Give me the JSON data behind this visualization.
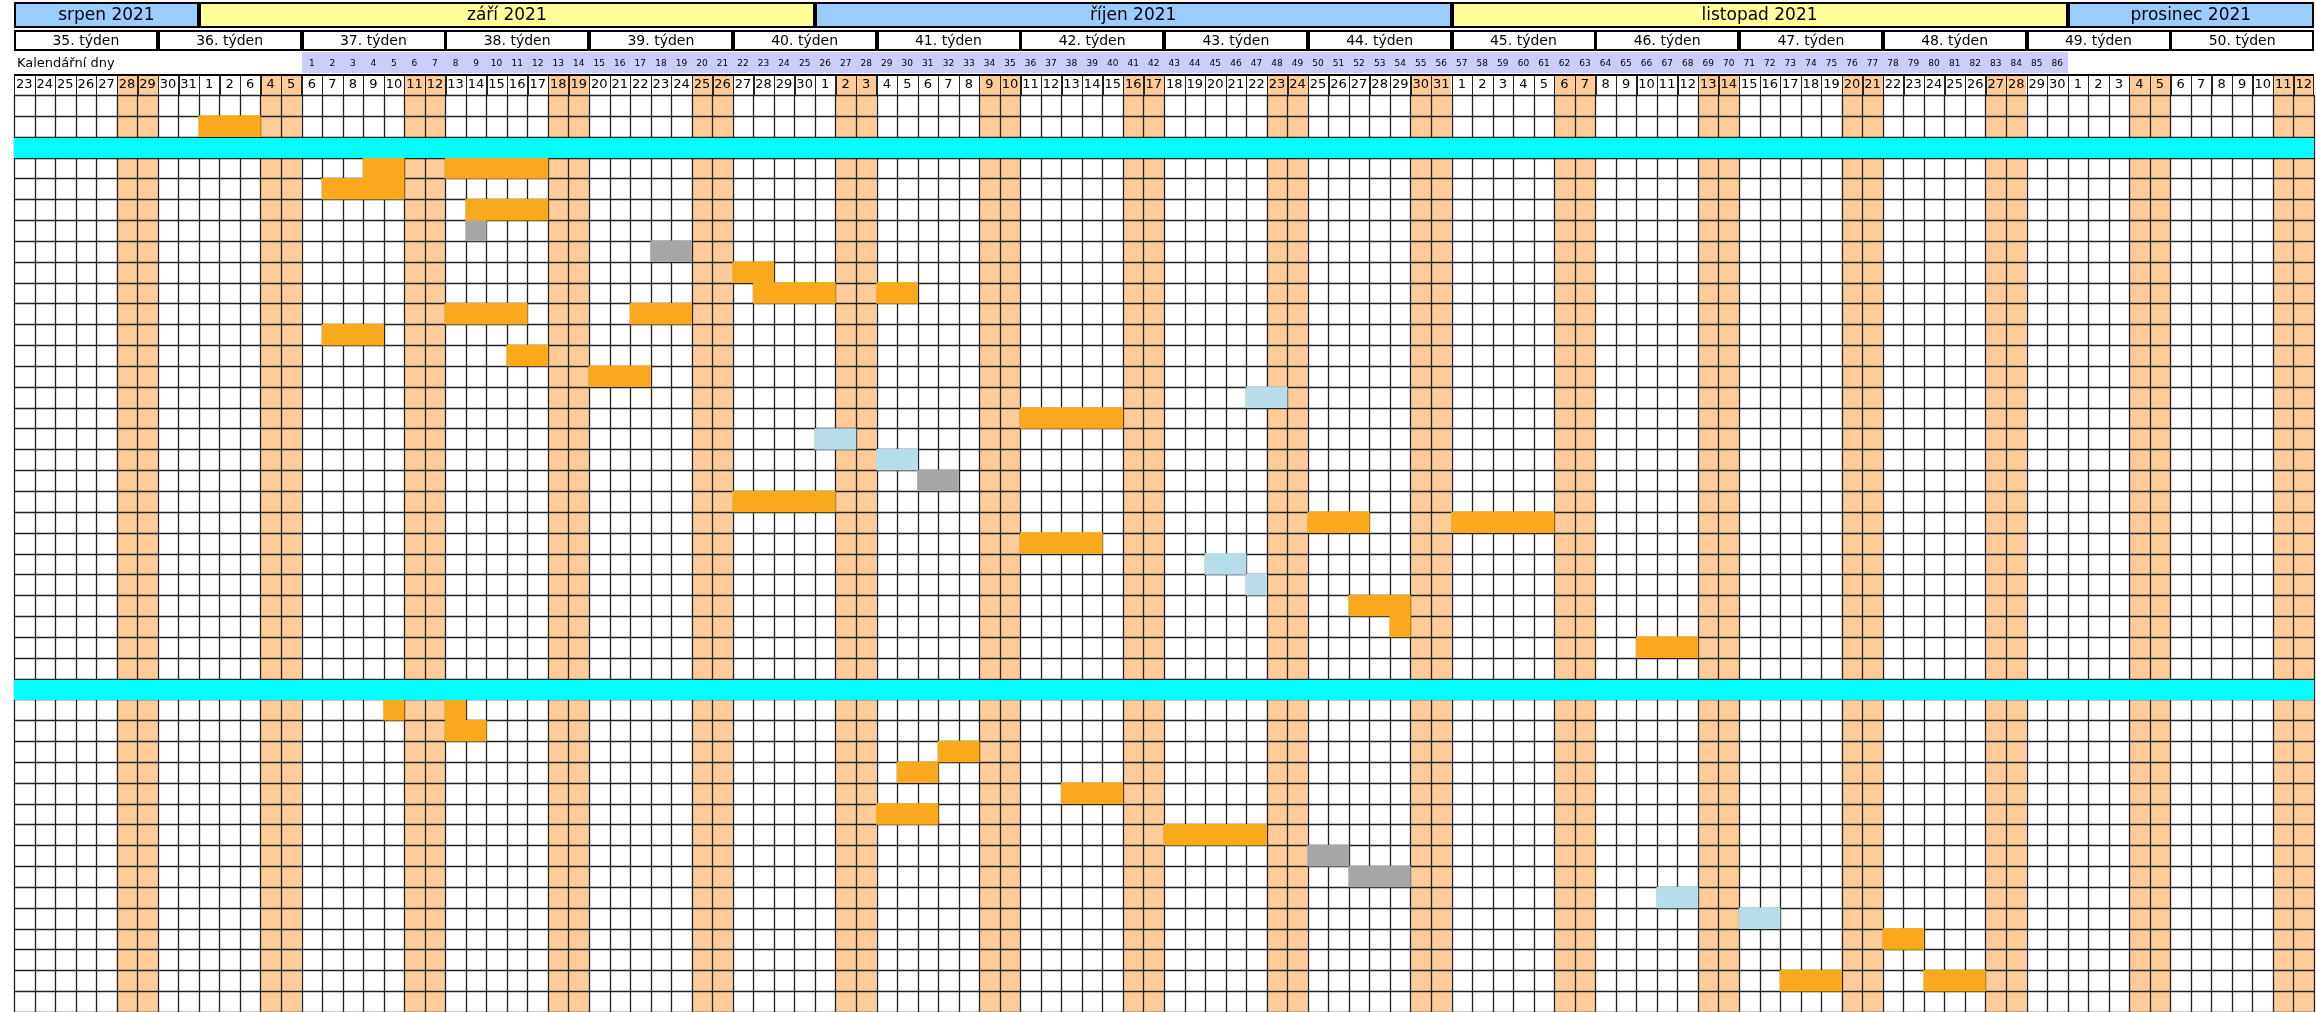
{
  "chart_data": {
    "type": "bar",
    "orientation": "horizontal",
    "grid": true,
    "tick_labels": "x",
    "categories": [
      null,
      null,
      null,
      null,
      null,
      null,
      null,
      null,
      null,
      null,
      null,
      null,
      null,
      null,
      null,
      null,
      null,
      null,
      null,
      null,
      null,
      null,
      null,
      null,
      null,
      null,
      null,
      null,
      null,
      null,
      null,
      null,
      null,
      null,
      null,
      null,
      null,
      null,
      null,
      null,
      null,
      null,
      null,
      null
    ],
    "xlim": [
      "2021-08-23",
      "2021-12-13"
    ],
    "xticks": [
      {
        "value": "2021-08-23T12:00",
        "label": "23"
      },
      {
        "value": "2021-08-24T12:00",
        "label": "24"
      },
      {
        "value": "2021-08-25T12:00",
        "label": "25"
      },
      {
        "value": "2021-08-26T12:00",
        "label": "26"
      },
      {
        "value": "2021-08-27T12:00",
        "label": "27"
      },
      {
        "value": "2021-08-28T12:00",
        "label": "28"
      },
      {
        "value": "2021-08-29T12:00",
        "label": "29"
      },
      {
        "value": "2021-08-30T12:00",
        "label": "30"
      },
      {
        "value": "2021-08-31T12:00",
        "label": "31"
      },
      {
        "value": "2021-09-01T12:00",
        "label": "1"
      },
      {
        "value": "2021-09-02T12:00",
        "label": "2"
      },
      {
        "value": "2021-09-03T12:00",
        "label": "6"
      },
      {
        "value": "2021-09-04T12:00",
        "label": "4"
      },
      {
        "value": "2021-09-05T12:00",
        "label": "5"
      },
      {
        "value": "2021-09-06T12:00",
        "label": "6"
      },
      {
        "value": "2021-09-07T12:00",
        "label": "7"
      },
      {
        "value": "2021-09-08T12:00",
        "label": "8"
      },
      {
        "value": "2021-09-09T12:00",
        "label": "9"
      },
      {
        "value": "2021-09-10T12:00",
        "label": "10"
      },
      {
        "value": "2021-09-11T12:00",
        "label": "11"
      },
      {
        "value": "2021-09-12T12:00",
        "label": "12"
      },
      {
        "value": "2021-09-13T12:00",
        "label": "13"
      },
      {
        "value": "2021-09-14T12:00",
        "label": "14"
      },
      {
        "value": "2021-09-15T12:00",
        "label": "15"
      },
      {
        "value": "2021-09-16T12:00",
        "label": "16"
      },
      {
        "value": "2021-09-17T12:00",
        "label": "17"
      },
      {
        "value": "2021-09-18T12:00",
        "label": "18"
      },
      {
        "value": "2021-09-19T12:00",
        "label": "19"
      },
      {
        "value": "2021-09-20T12:00",
        "label": "20"
      },
      {
        "value": "2021-09-21T12:00",
        "label": "21"
      },
      {
        "value": "2021-09-22T12:00",
        "label": "22"
      },
      {
        "value": "2021-09-23T12:00",
        "label": "23"
      },
      {
        "value": "2021-09-24T12:00",
        "label": "24"
      },
      {
        "value": "2021-09-25T12:00",
        "label": "25"
      },
      {
        "value": "2021-09-26T12:00",
        "label": "26"
      },
      {
        "value": "2021-09-27T12:00",
        "label": "27"
      },
      {
        "value": "2021-09-28T12:00",
        "label": "28"
      },
      {
        "value": "2021-09-29T12:00",
        "label": "29"
      },
      {
        "value": "2021-09-30T12:00",
        "label": "30"
      },
      {
        "value": "2021-10-01T12:00",
        "label": "1"
      },
      {
        "value": "2021-10-02T12:00",
        "label": "2"
      },
      {
        "value": "2021-10-03T12:00",
        "label": "3"
      },
      {
        "value": "2021-10-04T12:00",
        "label": "4"
      },
      {
        "value": "2021-10-05T12:00",
        "label": "5"
      },
      {
        "value": "2021-10-06T12:00",
        "label": "6"
      },
      {
        "value": "2021-10-07T12:00",
        "label": "7"
      },
      {
        "value": "2021-10-08T12:00",
        "label": "8"
      },
      {
        "value": "2021-10-09T12:00",
        "label": "9"
      },
      {
        "value": "2021-10-10T12:00",
        "label": "10"
      },
      {
        "value": "2021-10-11T12:00",
        "label": "11"
      },
      {
        "value": "2021-10-12T12:00",
        "label": "12"
      },
      {
        "value": "2021-10-13T12:00",
        "label": "13"
      },
      {
        "value": "2021-10-14T12:00",
        "label": "14"
      },
      {
        "value": "2021-10-15T12:00",
        "label": "15"
      },
      {
        "value": "2021-10-16T12:00",
        "label": "16"
      },
      {
        "value": "2021-10-17T12:00",
        "label": "17"
      },
      {
        "value": "2021-10-18T12:00",
        "label": "18"
      },
      {
        "value": "2021-10-19T12:00",
        "label": "19"
      },
      {
        "value": "2021-10-20T12:00",
        "label": "20"
      },
      {
        "value": "2021-10-21T12:00",
        "label": "21"
      },
      {
        "value": "2021-10-22T12:00",
        "label": "22"
      },
      {
        "value": "2021-10-23T12:00",
        "label": "23"
      },
      {
        "value": "2021-10-24T12:00",
        "label": "24"
      },
      {
        "value": "2021-10-25T12:00",
        "label": "25"
      },
      {
        "value": "2021-10-26T12:00",
        "label": "26"
      },
      {
        "value": "2021-10-27T12:00",
        "label": "27"
      },
      {
        "value": "2021-10-28T12:00",
        "label": "28"
      },
      {
        "value": "2021-10-29T12:00",
        "label": "29"
      },
      {
        "value": "2021-10-30T12:00",
        "label": "30"
      },
      {
        "value": "2021-10-31T12:00",
        "label": "31"
      },
      {
        "value": "2021-11-01T12:00",
        "label": "1"
      },
      {
        "value": "2021-11-02T12:00",
        "label": "2"
      },
      {
        "value": "2021-11-03T12:00",
        "label": "3"
      },
      {
        "value": "2021-11-04T12:00",
        "label": "4"
      },
      {
        "value": "2021-11-05T12:00",
        "label": "5"
      },
      {
        "value": "2021-11-06T12:00",
        "label": "6"
      },
      {
        "value": "2021-11-07T12:00",
        "label": "7"
      },
      {
        "value": "2021-11-08T12:00",
        "label": "8"
      },
      {
        "value": "2021-11-09T12:00",
        "label": "9"
      },
      {
        "value": "2021-11-10T12:00",
        "label": "10"
      },
      {
        "value": "2021-11-11T12:00",
        "label": "11"
      },
      {
        "value": "2021-11-12T12:00",
        "label": "12"
      },
      {
        "value": "2021-11-13T12:00",
        "label": "13"
      },
      {
        "value": "2021-11-14T12:00",
        "label": "14"
      },
      {
        "value": "2021-11-15T12:00",
        "label": "15"
      },
      {
        "value": "2021-11-16T12:00",
        "label": "16"
      },
      {
        "value": "2021-11-17T12:00",
        "label": "17"
      },
      {
        "value": "2021-11-18T12:00",
        "label": "18"
      },
      {
        "value": "2021-11-19T12:00",
        "label": "19"
      },
      {
        "value": "2021-11-20T12:00",
        "label": "20"
      },
      {
        "value": "2021-11-21T12:00",
        "label": "21"
      },
      {
        "value": "2021-11-22T12:00",
        "label": "22"
      },
      {
        "value": "2021-11-23T12:00",
        "label": "23"
      },
      {
        "value": "2021-11-24T12:00",
        "label": "24"
      },
      {
        "value": "2021-11-25T12:00",
        "label": "25"
      },
      {
        "value": "2021-11-26T12:00",
        "label": "26"
      },
      {
        "value": "2021-11-27T12:00",
        "label": "27"
      },
      {
        "value": "2021-11-28T12:00",
        "label": "28"
      },
      {
        "value": "2021-11-29T12:00",
        "label": "29"
      },
      {
        "value": "2021-11-30T12:00",
        "label": "30"
      },
      {
        "value": "2021-12-01T12:00",
        "label": "1"
      },
      {
        "value": "2021-12-02T12:00",
        "label": "2"
      },
      {
        "value": "2021-12-03T12:00",
        "label": "3"
      },
      {
        "value": "2021-12-04T12:00",
        "label": "4"
      },
      {
        "value": "2021-12-05T12:00",
        "label": "5"
      },
      {
        "value": "2021-12-06T12:00",
        "label": "6"
      },
      {
        "value": "2021-12-07T12:00",
        "label": "7"
      },
      {
        "value": "2021-12-08T12:00",
        "label": "8"
      },
      {
        "value": "2021-12-09T12:00",
        "label": "9"
      },
      {
        "value": "2021-12-10T12:00",
        "label": "10"
      },
      {
        "value": "2021-12-11T12:00",
        "label": "11"
      },
      {
        "value": "2021-12-12T12:00",
        "label": "12"
      }
    ],
    "x2label": "Kalendářní dny",
    "x2lim": [
      -13.5,
      98.5
    ],
    "x2ticks": [
      1,
      2,
      3,
      4,
      5,
      6,
      7,
      8,
      9,
      10,
      11,
      12,
      13,
      14,
      15,
      16,
      17,
      18,
      19,
      20,
      21,
      22,
      23,
      24,
      25,
      26,
      27,
      28,
      29,
      30,
      31,
      32,
      33,
      34,
      35,
      36,
      37,
      38,
      39,
      40,
      41,
      42,
      43,
      44,
      45,
      46,
      47,
      48,
      49,
      50,
      51,
      52,
      53,
      54,
      55,
      56,
      57,
      58,
      59,
      60,
      61,
      62,
      63,
      64,
      65,
      66,
      67,
      68,
      69,
      70,
      71,
      72,
      73,
      74,
      75,
      76,
      77,
      78,
      79,
      80,
      81,
      82,
      83,
      84,
      85,
      86
    ],
    "annotations": [
      "srpen 2021",
      "září 2021",
      "říjen 2021",
      "listopad 2021",
      "prosinec 2021",
      "35. týden",
      "36. týden",
      "37. týden",
      "38. týden",
      "39. týden",
      "40. týden",
      "41. týden",
      "42. týden",
      "43. týden",
      "44. týden",
      "45. týden",
      "46. týden",
      "47. týden",
      "48. týden",
      "49. týden",
      "50. týden"
    ],
    "bands": [
      {
        "axis": "x",
        "from": "2021-08-28",
        "to": "2021-08-30",
        "color": "#ffcc99"
      },
      {
        "axis": "x",
        "from": "2021-09-04",
        "to": "2021-09-06",
        "color": "#ffcc99"
      },
      {
        "axis": "x",
        "from": "2021-09-11",
        "to": "2021-09-13",
        "color": "#ffcc99"
      },
      {
        "axis": "x",
        "from": "2021-09-18",
        "to": "2021-09-20",
        "color": "#ffcc99"
      },
      {
        "axis": "x",
        "from": "2021-09-25",
        "to": "2021-09-27",
        "color": "#ffcc99"
      },
      {
        "axis": "x",
        "from": "2021-10-02",
        "to": "2021-10-04",
        "color": "#ffcc99"
      },
      {
        "axis": "x",
        "from": "2021-10-09",
        "to": "2021-10-11",
        "color": "#ffcc99"
      },
      {
        "axis": "x",
        "from": "2021-10-16",
        "to": "2021-10-18",
        "color": "#ffcc99"
      },
      {
        "axis": "x",
        "from": "2021-10-23",
        "to": "2021-10-25",
        "color": "#ffcc99"
      },
      {
        "axis": "x",
        "from": "2021-10-30",
        "to": "2021-11-01",
        "color": "#ffcc99"
      },
      {
        "axis": "x",
        "from": "2021-11-06",
        "to": "2021-11-08",
        "color": "#ffcc99"
      },
      {
        "axis": "x",
        "from": "2021-11-13",
        "to": "2021-11-15",
        "color": "#ffcc99"
      },
      {
        "axis": "x",
        "from": "2021-11-20",
        "to": "2021-11-22",
        "color": "#ffcc99"
      },
      {
        "axis": "x",
        "from": "2021-11-27",
        "to": "2021-11-29",
        "color": "#ffcc99"
      },
      {
        "axis": "x",
        "from": "2021-12-04",
        "to": "2021-12-06",
        "color": "#ffcc99"
      },
      {
        "axis": "x",
        "from": "2021-12-11",
        "to": "2021-12-13",
        "color": "#ffcc99"
      }
    ],
    "series": [
      {
        "axis": "x2",
        "color": "#f9a91b",
        "values": [
          null,
          3,
          null,
          2,
          4,
          4,
          null,
          null,
          2,
          4,
          4,
          3,
          2,
          3,
          null,
          5,
          null,
          null,
          null,
          5,
          3,
          4,
          null,
          null,
          3,
          1,
          3,
          null,
          null,
          1,
          2,
          2,
          2,
          3,
          3,
          5,
          null,
          null,
          null,
          null,
          2,
          null,
          3,
          null
        ],
        "base": [
          null,
          -4.5,
          null,
          3.5,
          1.5,
          8.5,
          null,
          null,
          21.5,
          22.5,
          7.5,
          1.5,
          10.5,
          14.5,
          null,
          35.5,
          null,
          null,
          null,
          21.5,
          49.5,
          35.5,
          null,
          null,
          51.5,
          53.5,
          65.5,
          null,
          null,
          4.5,
          7.5,
          31.5,
          29.5,
          37.5,
          28.5,
          42.5,
          null,
          null,
          null,
          null,
          77.5,
          null,
          72.5,
          null
        ]
      },
      {
        "axis": "x2",
        "color": "#f9a91b",
        "values": [
          null,
          null,
          null,
          5,
          null,
          null,
          null,
          null,
          null,
          2,
          3,
          null,
          null,
          null,
          null,
          null,
          null,
          null,
          null,
          null,
          5,
          null,
          null,
          null,
          null,
          null,
          null,
          null,
          null,
          1,
          null,
          null,
          null,
          null,
          null,
          null,
          null,
          null,
          null,
          null,
          null,
          null,
          3,
          null
        ],
        "base": [
          null,
          null,
          null,
          7.5,
          null,
          null,
          null,
          null,
          null,
          28.5,
          16.5,
          null,
          null,
          null,
          null,
          null,
          null,
          null,
          null,
          null,
          56.5,
          null,
          null,
          null,
          null,
          null,
          null,
          null,
          null,
          7.5,
          null,
          null,
          null,
          null,
          null,
          null,
          null,
          null,
          null,
          null,
          null,
          null,
          79.5,
          null
        ]
      },
      {
        "axis": "x2",
        "color": "#a6a6a6",
        "values": [
          null,
          null,
          null,
          null,
          null,
          null,
          1,
          2,
          null,
          null,
          null,
          null,
          null,
          null,
          null,
          null,
          null,
          null,
          2,
          null,
          null,
          null,
          null,
          null,
          null,
          null,
          null,
          null,
          null,
          null,
          null,
          null,
          null,
          null,
          null,
          null,
          2,
          3,
          null,
          null,
          null,
          null,
          null,
          null
        ],
        "base": [
          null,
          null,
          null,
          null,
          null,
          null,
          8.5,
          17.5,
          null,
          null,
          null,
          null,
          null,
          null,
          null,
          null,
          null,
          null,
          30.5,
          null,
          null,
          null,
          null,
          null,
          null,
          null,
          null,
          null,
          null,
          null,
          null,
          null,
          null,
          null,
          null,
          null,
          49.5,
          51.5,
          null,
          null,
          null,
          null,
          null,
          null
        ]
      },
      {
        "axis": "x2",
        "color": "#b7dde8",
        "values": [
          null,
          null,
          null,
          null,
          null,
          null,
          null,
          null,
          null,
          null,
          null,
          null,
          null,
          null,
          2,
          null,
          2,
          2,
          null,
          null,
          null,
          null,
          2,
          1,
          null,
          null,
          null,
          null,
          null,
          null,
          null,
          null,
          null,
          null,
          null,
          null,
          null,
          null,
          2,
          2,
          null,
          null,
          null,
          null
        ],
        "base": [
          null,
          null,
          null,
          null,
          null,
          null,
          null,
          null,
          null,
          null,
          null,
          null,
          null,
          null,
          46.5,
          null,
          25.5,
          28.5,
          null,
          null,
          null,
          null,
          44.5,
          46.5,
          null,
          null,
          null,
          null,
          null,
          null,
          null,
          null,
          null,
          null,
          null,
          null,
          null,
          null,
          66.5,
          70.5,
          null,
          null,
          null,
          null
        ]
      }
    ]
  }
}
